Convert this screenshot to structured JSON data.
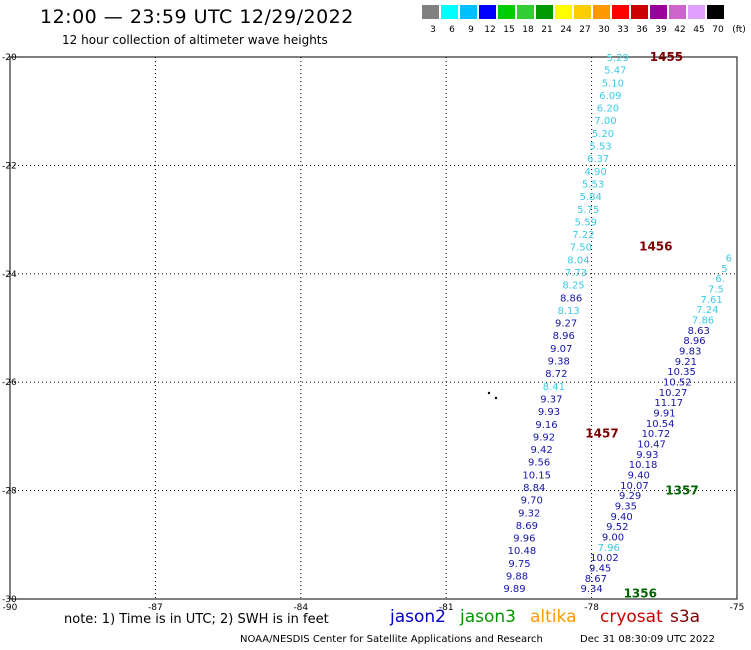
{
  "header": {
    "title": "12:00 — 23:59 UTC 12/29/2022",
    "subtitle": "12 hour collection of altimeter wave heights"
  },
  "scale": {
    "colors": [
      "#808080",
      "#00ffff",
      "#00bfff",
      "#0000ff",
      "#00cc00",
      "#33cc33",
      "#009900",
      "#ffff00",
      "#ffcc00",
      "#ff9900",
      "#ff0000",
      "#cc0000",
      "#990099",
      "#cc66cc",
      "#e0a0ff",
      "#000000"
    ],
    "labels": [
      "3",
      "6",
      "9",
      "12",
      "15",
      "18",
      "21",
      "24",
      "27",
      "30",
      "33",
      "36",
      "39",
      "42",
      "45",
      "70"
    ],
    "unit": "(ft)"
  },
  "map": {
    "lon_ticks": [
      "-90",
      "-87",
      "-84",
      "-81",
      "-78",
      "-75"
    ],
    "lat_ticks": [
      "-20",
      "-22",
      "-24",
      "-26",
      "-28",
      "-30"
    ],
    "lon_range": [
      -90,
      -75
    ],
    "lat_range": [
      -30,
      -20
    ],
    "color_low": "#3ccbe6",
    "color_high": "#1414a8",
    "tracks": [
      {
        "name": "pass-1455-1457",
        "values": [
          "5.29",
          "5.47",
          "5.10",
          "6.09",
          "6.20",
          "7.00",
          "5.20",
          "5.53",
          "6.37",
          "4.90",
          "5.53",
          "5.84",
          "5.75",
          "5.59",
          "7.22",
          "7.50",
          "8.04",
          "7.73",
          "8.25",
          "8.86",
          "8.13",
          "9.27",
          "8.96",
          "9.07",
          "9.38",
          "8.72",
          "8.41",
          "9.37",
          "9.93",
          "9.16",
          "9.92",
          "9.42",
          "9.56",
          "10.15",
          "8.84",
          "9.70",
          "9.32",
          "8.69",
          "9.96",
          "10.48",
          "9.75",
          "9.88",
          "9.89"
        ],
        "start": [
          -77.46,
          -20.0
        ],
        "end": [
          -79.59,
          -29.8
        ]
      },
      {
        "name": "pass-1356-1357",
        "values": [
          "6",
          "5",
          "6.",
          "7.5",
          "7.61",
          "7.24",
          "7.86",
          "8.63",
          "8.96",
          "9.83",
          "9.21",
          "10.35",
          "10.52",
          "10.27",
          "11.17",
          "9.91",
          "10.54",
          "10.72",
          "10.47",
          "9.93",
          "10.18",
          "9.40",
          "10.07",
          "9.29",
          "9.35",
          "9.40",
          "9.52",
          "9.00",
          "7.96",
          "10.02",
          "9.45",
          "8.67",
          "9.34"
        ],
        "start": [
          -75.17,
          -23.7
        ],
        "end": [
          -78.0,
          -29.8
        ]
      }
    ],
    "pass_labels": [
      {
        "text": "1455",
        "color": "#800000",
        "lon": -76.8,
        "lat": -20.0
      },
      {
        "text": "1456",
        "color": "#800000",
        "lon": -77.02,
        "lat": -23.5
      },
      {
        "text": "1457",
        "color": "#800000",
        "lon": -78.13,
        "lat": -26.95
      },
      {
        "text": "1357",
        "color": "#006600",
        "lon": -76.48,
        "lat": -28.0
      },
      {
        "text": "1356",
        "color": "#006600",
        "lon": -77.34,
        "lat": -29.9
      }
    ]
  },
  "footer": {
    "note": "note: 1) Time is in UTC; 2) SWH is in feet",
    "satellites": [
      {
        "name": "jason2",
        "color": "#0000cc"
      },
      {
        "name": "jason3",
        "color": "#009900"
      },
      {
        "name": "altika",
        "color": "#ff9900"
      },
      {
        "name": "cryosat",
        "color": "#cc0000"
      },
      {
        "name": "s3a",
        "color": "#800000"
      }
    ],
    "credit": "NOAA/NESDIS Center for Satellite Applications and Research",
    "timestamp": "Dec 31 08:30:09 UTC 2022"
  }
}
